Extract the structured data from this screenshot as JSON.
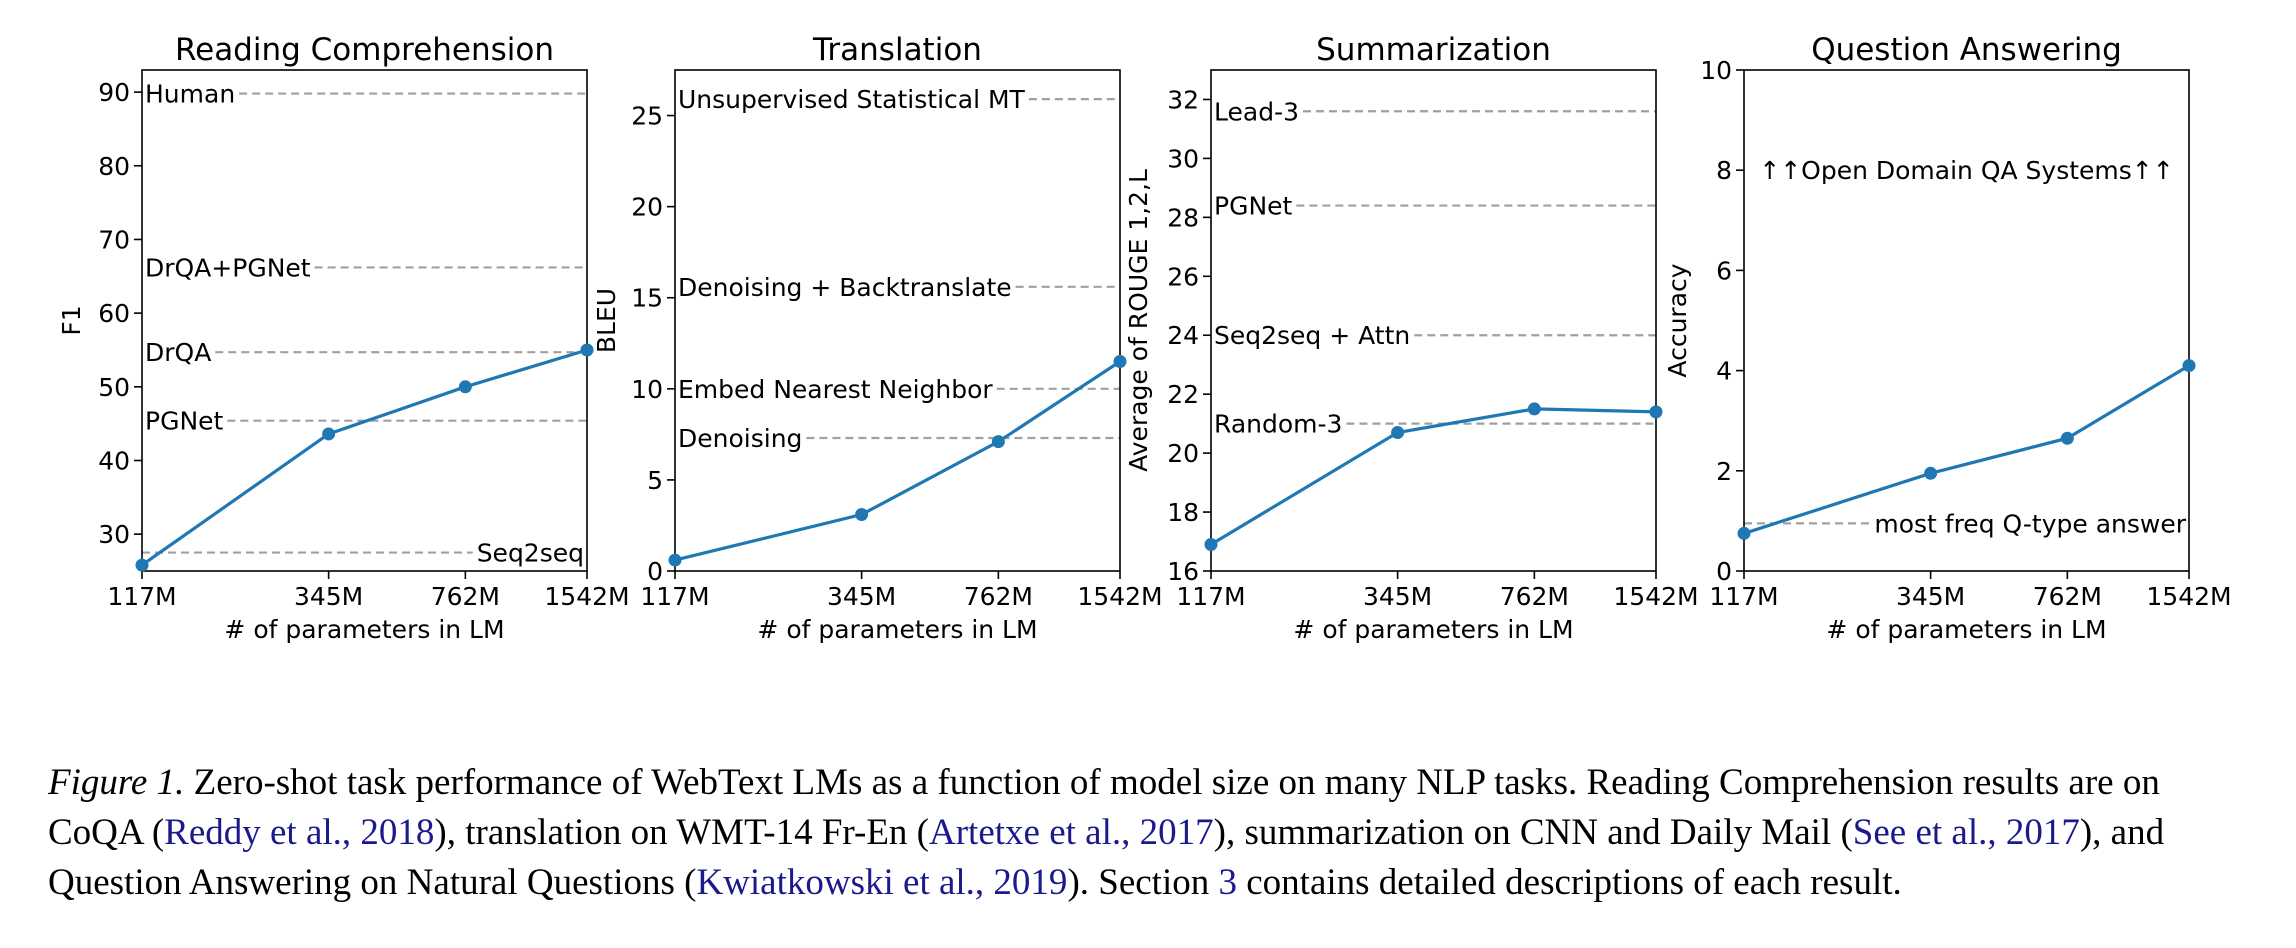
{
  "chart_data": [
    {
      "type": "line",
      "title": "Reading Comprehension",
      "xlabel": "# of parameters in LM",
      "ylabel": "F1",
      "x_scale": "log",
      "categories": [
        "117M",
        "345M",
        "762M",
        "1542M"
      ],
      "x": [
        117,
        345,
        762,
        1542
      ],
      "values": [
        25.8,
        43.6,
        50.0,
        55.0
      ],
      "ylim": [
        25,
        93
      ],
      "yticks": [
        30,
        40,
        50,
        60,
        70,
        80,
        90
      ],
      "color": "#1f77b4",
      "baselines": [
        {
          "label": "Human",
          "value": 89.8,
          "label_pos": "left"
        },
        {
          "label": "DrQA+PGNet",
          "value": 66.2,
          "label_pos": "left"
        },
        {
          "label": "DrQA",
          "value": 54.7,
          "label_pos": "left"
        },
        {
          "label": "PGNet",
          "value": 45.4,
          "label_pos": "left"
        },
        {
          "label": "Seq2seq",
          "value": 27.5,
          "label_pos": "right"
        }
      ]
    },
    {
      "type": "line",
      "title": "Translation",
      "xlabel": "# of parameters in LM",
      "ylabel": "BLEU",
      "x_scale": "log",
      "categories": [
        "117M",
        "345M",
        "762M",
        "1542M"
      ],
      "x": [
        117,
        345,
        762,
        1542
      ],
      "values": [
        0.6,
        3.1,
        7.1,
        11.5
      ],
      "ylim": [
        0,
        27.5
      ],
      "yticks": [
        0,
        5,
        10,
        15,
        20,
        25
      ],
      "color": "#1f77b4",
      "baselines": [
        {
          "label": "Unsupervised Statistical MT",
          "value": 25.9,
          "label_pos": "left"
        },
        {
          "label": "Denoising + Backtranslate",
          "value": 15.6,
          "label_pos": "left"
        },
        {
          "label": "Embed Nearest Neighbor",
          "value": 10.0,
          "label_pos": "left"
        },
        {
          "label": "Denoising",
          "value": 7.3,
          "label_pos": "left"
        }
      ]
    },
    {
      "type": "line",
      "title": "Summarization",
      "xlabel": "# of parameters in LM",
      "ylabel": "Average of ROUGE 1,2,L",
      "x_scale": "log",
      "categories": [
        "117M",
        "345M",
        "762M",
        "1542M"
      ],
      "x": [
        117,
        345,
        762,
        1542
      ],
      "values": [
        16.9,
        20.7,
        21.5,
        21.4
      ],
      "ylim": [
        16,
        33
      ],
      "yticks": [
        16,
        18,
        20,
        22,
        24,
        26,
        28,
        30,
        32
      ],
      "color": "#1f77b4",
      "baselines": [
        {
          "label": "Lead-3",
          "value": 31.6,
          "label_pos": "left"
        },
        {
          "label": "PGNet",
          "value": 28.4,
          "label_pos": "left"
        },
        {
          "label": "Seq2seq + Attn",
          "value": 24.0,
          "label_pos": "left"
        },
        {
          "label": "Random-3",
          "value": 21.0,
          "label_pos": "left"
        }
      ]
    },
    {
      "type": "line",
      "title": "Question Answering",
      "xlabel": "# of parameters in LM",
      "ylabel": "Accuracy",
      "x_scale": "log",
      "categories": [
        "117M",
        "345M",
        "762M",
        "1542M"
      ],
      "x": [
        117,
        345,
        762,
        1542
      ],
      "values": [
        0.75,
        1.95,
        2.65,
        4.1
      ],
      "ylim": [
        0,
        10
      ],
      "yticks": [
        0,
        2,
        4,
        6,
        8,
        10
      ],
      "color": "#1f77b4",
      "baselines": [
        {
          "label": "↑↑Open Domain QA Systems↑↑",
          "value": 8.0,
          "label_pos": "span"
        },
        {
          "label": "most freq Q-type answer",
          "value": 0.95,
          "label_pos": "right"
        }
      ]
    }
  ],
  "caption": {
    "label": "Figure 1.",
    "t1": " Zero-shot task performance of WebText LMs as a function of model size on many NLP tasks. Reading Comprehension results are on CoQA (",
    "c1": "Reddy et al., 2018",
    "t2": "), translation on WMT-14 Fr-En (",
    "c2": "Artetxe et al., 2017",
    "t3": "), summarization on CNN and Daily Mail (",
    "c3": "See et al., 2017",
    "t4": "), and Question Answering on Natural Questions (",
    "c4": "Kwiatkowski et al., 2019",
    "t5": "). Section ",
    "c5": "3",
    "t6": " contains detailed descriptions of each result."
  }
}
